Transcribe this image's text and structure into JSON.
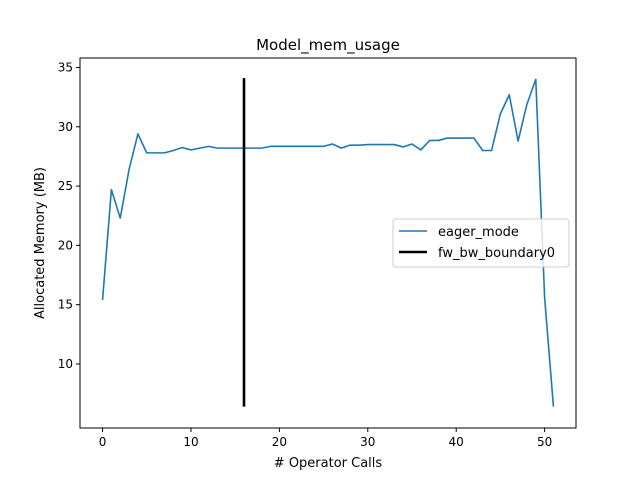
{
  "chart_data": {
    "type": "line",
    "title": "Model_mem_usage",
    "xlabel": "# Operator Calls",
    "ylabel": "Allocated Memory (MB)",
    "xlim": [
      -2.55,
      53.55
    ],
    "ylim": [
      4.6,
      35.8
    ],
    "xticks": [
      0,
      10,
      20,
      30,
      40,
      50
    ],
    "yticks": [
      10,
      15,
      20,
      25,
      30,
      35
    ],
    "grid": false,
    "legend_position": "center-right",
    "series": [
      {
        "name": "eager_mode",
        "color": "#1f77b4",
        "x": [
          0,
          1,
          2,
          3,
          4,
          5,
          6,
          7,
          8,
          9,
          10,
          11,
          12,
          13,
          14,
          15,
          16,
          17,
          18,
          19,
          20,
          21,
          22,
          23,
          24,
          25,
          26,
          27,
          28,
          29,
          30,
          31,
          32,
          33,
          34,
          35,
          36,
          37,
          38,
          39,
          40,
          41,
          42,
          43,
          44,
          45,
          46,
          47,
          48,
          49,
          50,
          51
        ],
        "y": [
          15.4,
          24.7,
          22.3,
          26.4,
          29.4,
          27.8,
          27.8,
          27.8,
          28.0,
          28.25,
          28.05,
          28.2,
          28.35,
          28.2,
          28.2,
          28.2,
          28.2,
          28.2,
          28.2,
          28.35,
          28.35,
          28.35,
          28.35,
          28.35,
          28.35,
          28.35,
          28.55,
          28.2,
          28.45,
          28.45,
          28.5,
          28.5,
          28.5,
          28.5,
          28.3,
          28.55,
          28.05,
          28.85,
          28.85,
          29.05,
          29.05,
          29.05,
          29.05,
          28.0,
          28.0,
          31.1,
          32.7,
          28.8,
          31.9,
          34.0,
          15.6,
          6.4
        ]
      },
      {
        "name": "fw_bw_boundary0",
        "color": "#000000",
        "x": [
          16,
          16
        ],
        "y": [
          6.4,
          34.1
        ]
      }
    ]
  }
}
